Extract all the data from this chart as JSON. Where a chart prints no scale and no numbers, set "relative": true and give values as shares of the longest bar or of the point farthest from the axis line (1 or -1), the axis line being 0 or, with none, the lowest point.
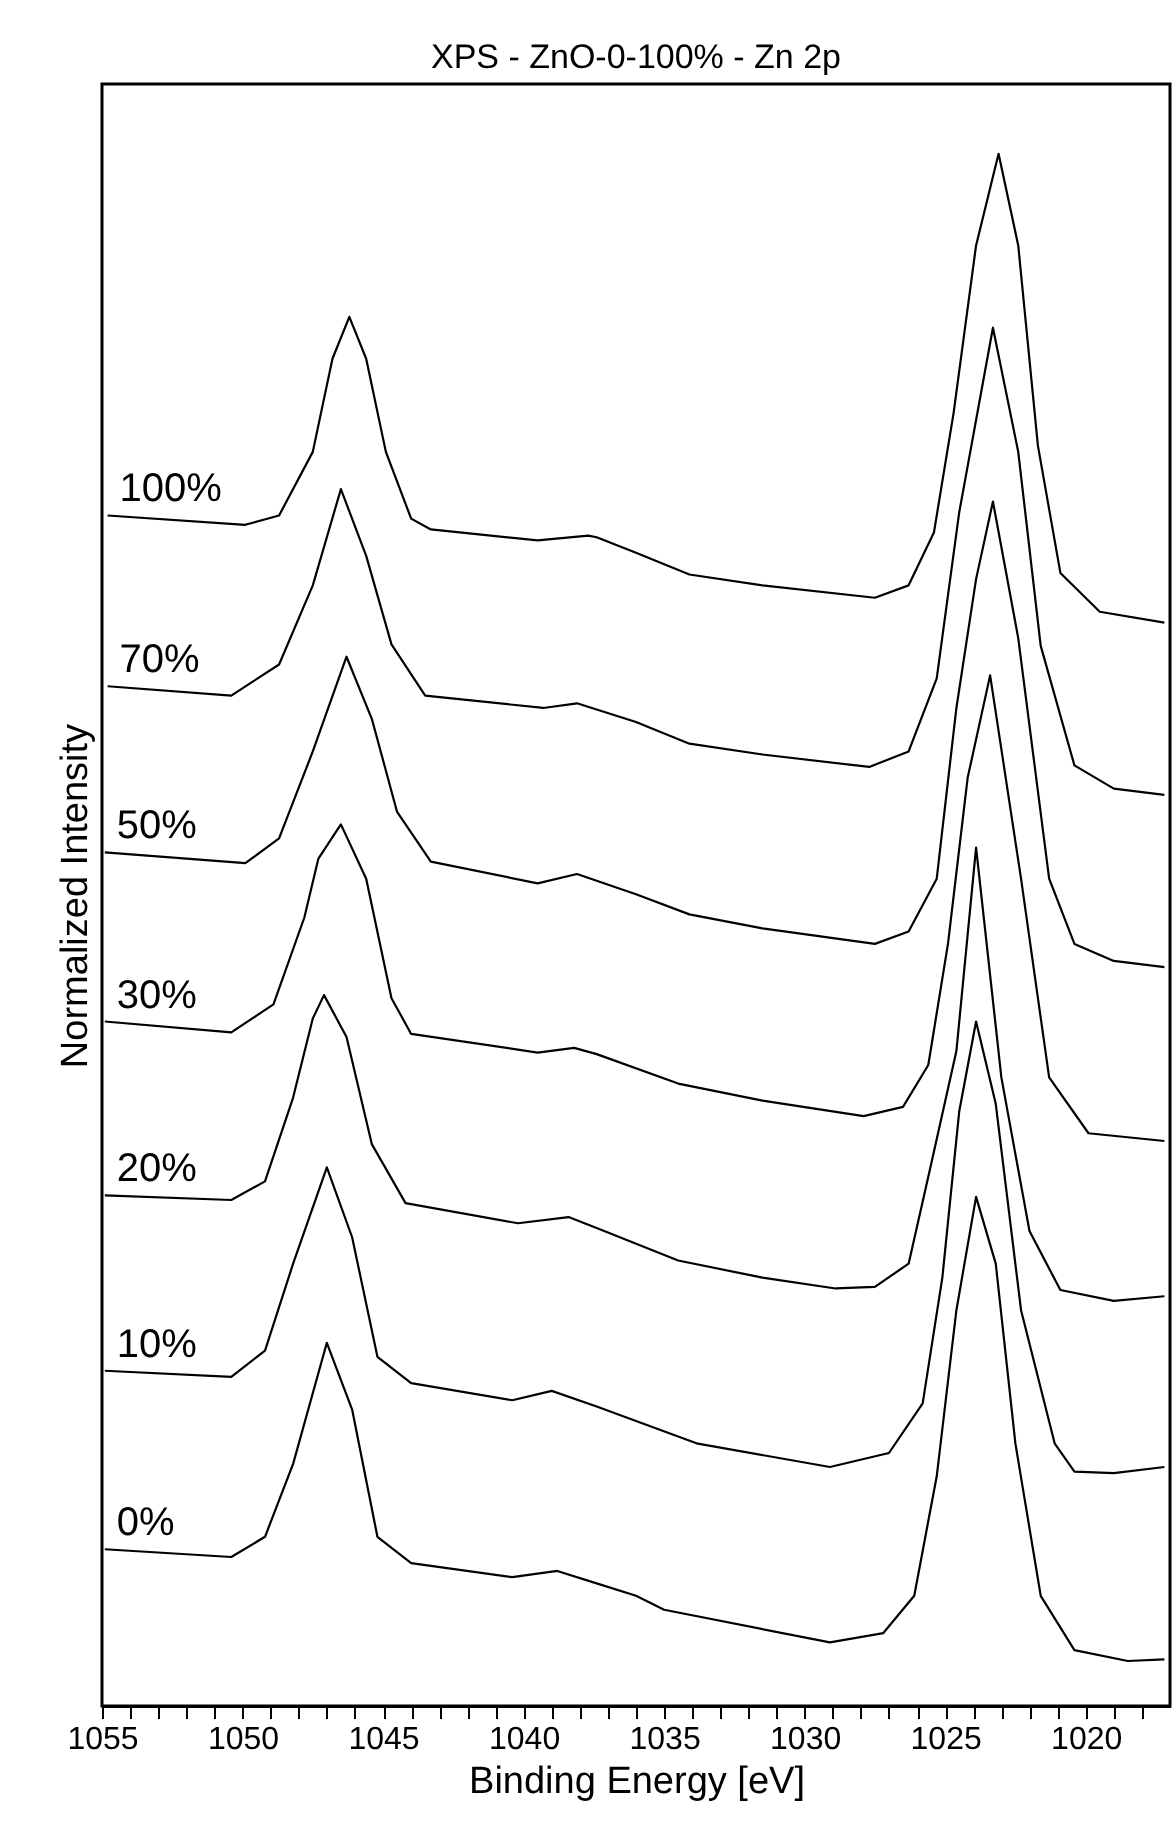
{
  "chart_data": {
    "type": "line",
    "title": "XPS - ZnO-0-100% - Zn 2p",
    "xlabel": "Binding Energy [eV]",
    "ylabel": "Normalized Intensity",
    "relative": true,
    "grid": false,
    "legend": false,
    "marker": "none",
    "line_style": "solid",
    "xlim": [
      1055,
      1017
    ],
    "xticks": [
      1055,
      {
        "value": 1054,
        "label": null
      },
      {
        "value": 1053,
        "label": null
      },
      {
        "value": 1052,
        "label": null
      },
      {
        "value": 1051,
        "label": null
      },
      1050,
      {
        "value": 1049,
        "label": null
      },
      {
        "value": 1048,
        "label": null
      },
      {
        "value": 1047,
        "label": null
      },
      {
        "value": 1046,
        "label": null
      },
      1045,
      {
        "value": 1044,
        "label": null
      },
      {
        "value": 1043,
        "label": null
      },
      {
        "value": 1042,
        "label": null
      },
      {
        "value": 1041,
        "label": null
      },
      1040,
      {
        "value": 1039,
        "label": null
      },
      {
        "value": 1038,
        "label": null
      },
      {
        "value": 1037,
        "label": null
      },
      {
        "value": 1036,
        "label": null
      },
      1035,
      {
        "value": 1034,
        "label": null
      },
      {
        "value": 1033,
        "label": null
      },
      {
        "value": 1032,
        "label": null
      },
      {
        "value": 1031,
        "label": null
      },
      1030,
      {
        "value": 1029,
        "label": null
      },
      {
        "value": 1028,
        "label": null
      },
      {
        "value": 1027,
        "label": null
      },
      {
        "value": 1026,
        "label": null
      },
      1025,
      {
        "value": 1024,
        "label": null
      },
      {
        "value": 1023,
        "label": null
      },
      {
        "value": 1022,
        "label": null
      },
      {
        "value": 1021,
        "label": null
      },
      1020,
      {
        "value": 1019,
        "label": null
      },
      {
        "value": 1018,
        "label": null
      }
    ],
    "series": [
      {
        "name": "100%",
        "color": "#000000",
        "x": [
          1054.8,
          1049.9,
          1048.7,
          1047.5,
          1046.8,
          1046.2,
          1045.6,
          1044.9,
          1044.0,
          1043.3,
          1039.5,
          1037.7,
          1037.4,
          1036.0,
          1034.1,
          1031.5,
          1027.5,
          1026.3,
          1025.4,
          1024.7,
          1023.9,
          1023.1,
          1022.4,
          1021.7,
          1020.9,
          1019.5,
          1017.2
        ],
        "values": [
          0.767,
          0.761,
          0.767,
          0.808,
          0.868,
          0.895,
          0.868,
          0.808,
          0.765,
          0.758,
          0.751,
          0.754,
          0.753,
          0.743,
          0.729,
          0.722,
          0.714,
          0.722,
          0.756,
          0.833,
          0.941,
          1.0,
          0.941,
          0.812,
          0.73,
          0.705,
          0.698
        ]
      },
      {
        "name": "70%",
        "color": "#000000",
        "x": [
          1054.8,
          1050.4,
          1048.7,
          1047.5,
          1046.5,
          1045.6,
          1044.7,
          1043.5,
          1039.3,
          1038.1,
          1036.0,
          1034.1,
          1031.5,
          1027.7,
          1026.3,
          1025.3,
          1024.5,
          1023.3,
          1022.4,
          1021.6,
          1020.4,
          1019.0,
          1017.2
        ],
        "values": [
          0.657,
          0.651,
          0.671,
          0.722,
          0.784,
          0.741,
          0.684,
          0.651,
          0.643,
          0.646,
          0.634,
          0.62,
          0.613,
          0.605,
          0.615,
          0.662,
          0.769,
          0.888,
          0.808,
          0.683,
          0.606,
          0.591,
          0.587
        ]
      },
      {
        "name": "50%",
        "color": "#000000",
        "x": [
          1054.9,
          1049.9,
          1048.7,
          1047.5,
          1046.3,
          1045.4,
          1044.5,
          1043.3,
          1039.5,
          1038.1,
          1036.0,
          1034.1,
          1031.5,
          1027.5,
          1026.3,
          1025.3,
          1024.6,
          1023.9,
          1023.3,
          1022.4,
          1021.3,
          1020.4,
          1019.0,
          1017.2
        ],
        "values": [
          0.55,
          0.543,
          0.559,
          0.615,
          0.676,
          0.636,
          0.576,
          0.544,
          0.53,
          0.536,
          0.523,
          0.51,
          0.501,
          0.491,
          0.499,
          0.533,
          0.643,
          0.726,
          0.776,
          0.688,
          0.533,
          0.491,
          0.48,
          0.476
        ]
      },
      {
        "name": "30%",
        "color": "#000000",
        "x": [
          1054.9,
          1050.4,
          1048.9,
          1047.8,
          1047.3,
          1046.5,
          1045.6,
          1044.7,
          1044.0,
          1039.5,
          1038.2,
          1037.4,
          1034.5,
          1031.5,
          1027.9,
          1026.5,
          1025.6,
          1024.9,
          1024.2,
          1023.4,
          1022.3,
          1021.3,
          1019.9,
          1017.2
        ],
        "values": [
          0.441,
          0.434,
          0.452,
          0.508,
          0.546,
          0.568,
          0.533,
          0.456,
          0.433,
          0.421,
          0.424,
          0.42,
          0.401,
          0.39,
          0.38,
          0.386,
          0.413,
          0.491,
          0.598,
          0.664,
          0.533,
          0.405,
          0.369,
          0.364
        ]
      },
      {
        "name": "20%",
        "color": "#000000",
        "x": [
          1054.9,
          1050.4,
          1049.2,
          1048.2,
          1047.5,
          1047.1,
          1046.3,
          1045.4,
          1044.2,
          1040.2,
          1038.4,
          1037.4,
          1034.5,
          1031.5,
          1028.9,
          1027.5,
          1026.3,
          1025.5,
          1024.6,
          1023.9,
          1023.0,
          1022.0,
          1020.9,
          1019.0,
          1017.2
        ],
        "values": [
          0.329,
          0.326,
          0.338,
          0.392,
          0.443,
          0.458,
          0.431,
          0.362,
          0.324,
          0.311,
          0.315,
          0.308,
          0.287,
          0.276,
          0.269,
          0.27,
          0.285,
          0.349,
          0.422,
          0.553,
          0.405,
          0.306,
          0.268,
          0.261,
          0.264
        ]
      },
      {
        "name": "10%",
        "color": "#000000",
        "x": [
          1054.9,
          1050.4,
          1049.2,
          1048.2,
          1047.0,
          1046.1,
          1045.2,
          1044.0,
          1040.4,
          1039.0,
          1037.4,
          1033.8,
          1029.1,
          1027.0,
          1025.8,
          1025.1,
          1024.5,
          1023.9,
          1023.2,
          1022.3,
          1021.1,
          1020.4,
          1019.0,
          1017.2
        ],
        "values": [
          0.216,
          0.212,
          0.229,
          0.285,
          0.347,
          0.302,
          0.225,
          0.208,
          0.197,
          0.203,
          0.193,
          0.169,
          0.154,
          0.163,
          0.195,
          0.276,
          0.383,
          0.441,
          0.388,
          0.255,
          0.169,
          0.151,
          0.15,
          0.154
        ]
      },
      {
        "name": "0%",
        "color": "#000000",
        "x": [
          1054.9,
          1050.4,
          1049.2,
          1048.2,
          1047.0,
          1046.1,
          1045.2,
          1044.0,
          1040.4,
          1038.8,
          1037.4,
          1036.0,
          1035.0,
          1029.1,
          1027.2,
          1026.1,
          1025.3,
          1024.6,
          1023.9,
          1023.2,
          1022.5,
          1021.6,
          1020.4,
          1018.5,
          1017.2
        ],
        "values": [
          0.101,
          0.096,
          0.109,
          0.156,
          0.234,
          0.191,
          0.109,
          0.092,
          0.083,
          0.087,
          0.079,
          0.071,
          0.062,
          0.041,
          0.047,
          0.071,
          0.148,
          0.255,
          0.328,
          0.285,
          0.169,
          0.071,
          0.036,
          0.029,
          0.03
        ]
      }
    ]
  }
}
